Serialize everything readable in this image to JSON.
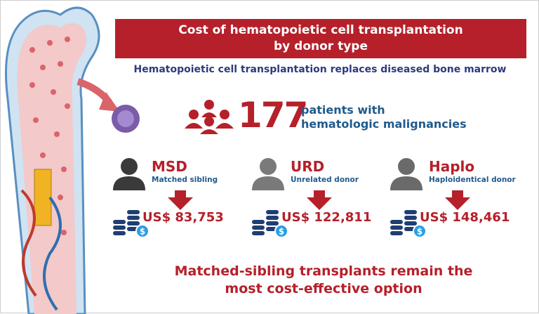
{
  "title": "Cost of hematopoietic cell transplantation by donor type",
  "title_lines": [
    "Cost of hematopoietic cell transplantation",
    "by donor type"
  ],
  "subtitle": "Hematopoietic cell transplantation replaces diseased bone marrow",
  "patients": {
    "count": "177",
    "label_lines": [
      "patients with",
      "hematologic malignancies"
    ],
    "icon": "patients-group-icon"
  },
  "donors": [
    {
      "code": "MSD",
      "description": "Matched sibling",
      "cost": "US$ 83,753",
      "icon_color": "#3a3a3a"
    },
    {
      "code": "URD",
      "description": "Unrelated donor",
      "cost": "US$ 122,811",
      "icon_color": "#7a7a7a"
    },
    {
      "code": "Haplo",
      "description": "Haploidentical donor",
      "cost": "US$ 148,461",
      "icon_color": "#6a6a6a"
    }
  ],
  "conclusion_lines": [
    "Matched-sibling transplants remain the",
    "most cost-effective option"
  ],
  "colors": {
    "red": "#b5202a",
    "blue": "#1f5a8c",
    "navy": "#2e3a7c"
  }
}
